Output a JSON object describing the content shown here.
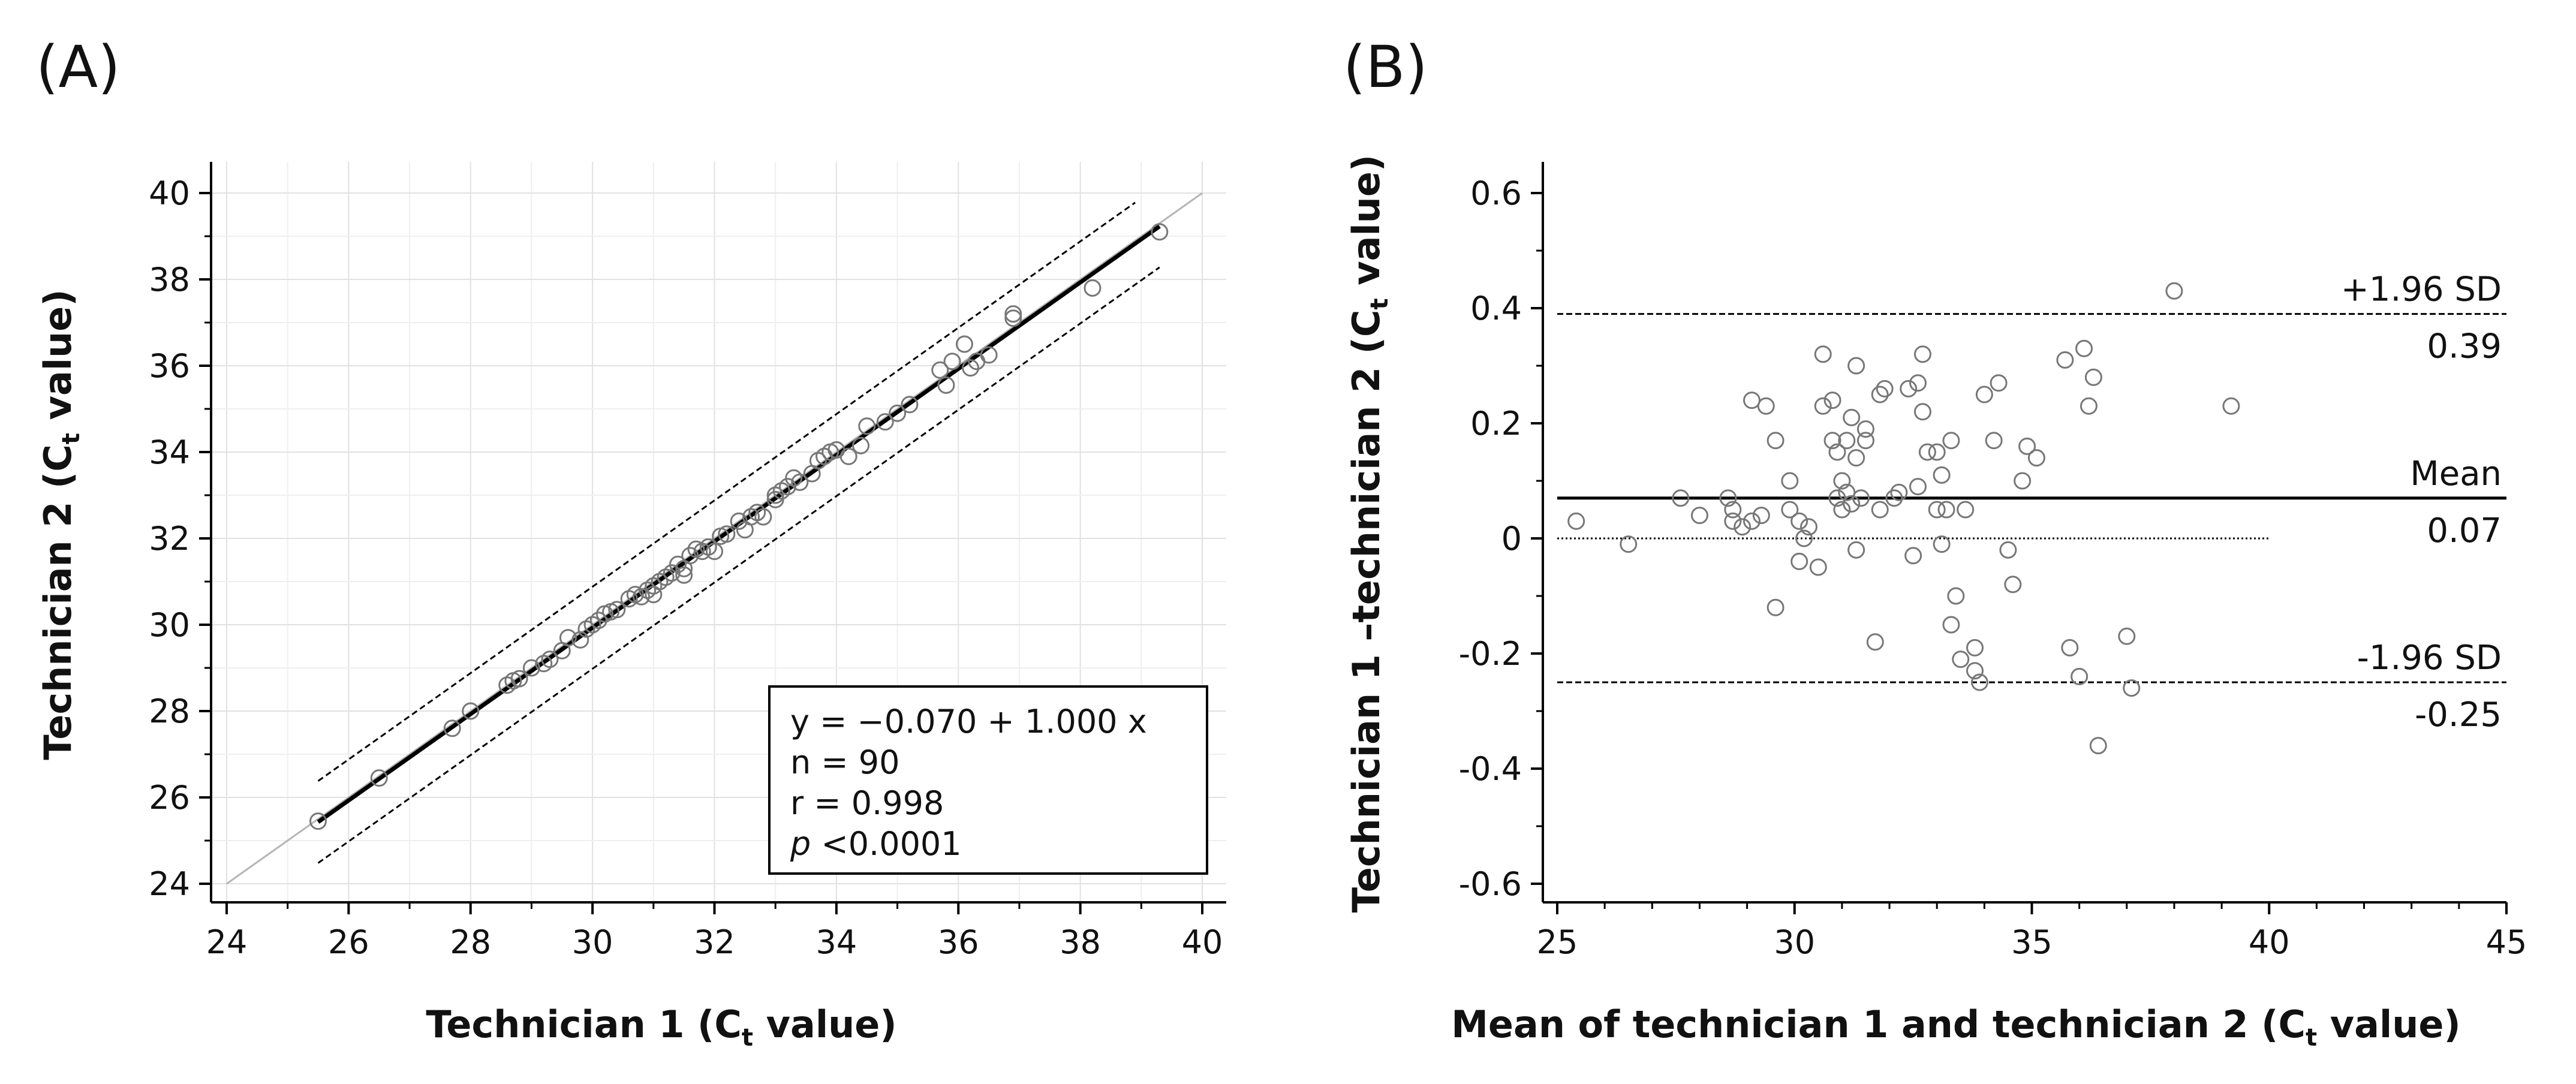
{
  "chart_data": [
    {
      "type": "scatter",
      "panel_label": "(A)",
      "xlabel": "Technician 1 (",
      "xlabel_sym": "C",
      "xlabel_sub": "t",
      "xlabel_end": " value)",
      "ylabel": "Technician 2 (",
      "ylabel_sym": "C",
      "ylabel_sub": "t",
      "ylabel_end": " value)",
      "xlim": [
        24,
        40
      ],
      "ylim": [
        24,
        40
      ],
      "xticks": [
        "24",
        "26",
        "28",
        "30",
        "32",
        "34",
        "36",
        "38",
        "40"
      ],
      "yticks": [
        "24",
        "26",
        "28",
        "30",
        "32",
        "34",
        "36",
        "38",
        "40"
      ],
      "grid": true,
      "regression_line": {
        "intercept": -0.07,
        "slope": 1.0,
        "x_range": [
          25.5,
          39.3
        ]
      },
      "prediction_band_offset": 0.95,
      "identity_line": true,
      "legend_box": {
        "equation": "y = −0.070 + 1.000 x",
        "n": "n = 90",
        "r": "r = 0.998",
        "p_italic": "p",
        "p_rest": " <0.0001"
      },
      "points": [
        [
          25.5,
          25.45
        ],
        [
          26.5,
          26.45
        ],
        [
          27.7,
          27.6
        ],
        [
          28.0,
          28.0
        ],
        [
          28.6,
          28.6
        ],
        [
          28.7,
          28.7
        ],
        [
          28.8,
          28.75
        ],
        [
          29.0,
          29.0
        ],
        [
          29.2,
          29.1
        ],
        [
          29.3,
          29.2
        ],
        [
          29.5,
          29.4
        ],
        [
          29.6,
          29.7
        ],
        [
          29.8,
          29.65
        ],
        [
          29.9,
          29.9
        ],
        [
          30.0,
          30.0
        ],
        [
          30.1,
          30.1
        ],
        [
          30.2,
          30.25
        ],
        [
          30.3,
          30.3
        ],
        [
          30.4,
          30.35
        ],
        [
          30.6,
          30.6
        ],
        [
          30.7,
          30.7
        ],
        [
          30.8,
          30.65
        ],
        [
          30.9,
          30.8
        ],
        [
          31.0,
          30.9
        ],
        [
          31.0,
          30.7
        ],
        [
          31.1,
          31.0
        ],
        [
          31.2,
          31.1
        ],
        [
          31.3,
          31.2
        ],
        [
          31.4,
          31.4
        ],
        [
          31.5,
          31.3
        ],
        [
          31.5,
          31.15
        ],
        [
          31.6,
          31.6
        ],
        [
          31.7,
          31.75
        ],
        [
          31.8,
          31.7
        ],
        [
          31.9,
          31.8
        ],
        [
          32.0,
          31.7
        ],
        [
          32.1,
          32.05
        ],
        [
          32.2,
          32.1
        ],
        [
          32.4,
          32.4
        ],
        [
          32.5,
          32.2
        ],
        [
          32.6,
          32.5
        ],
        [
          32.7,
          32.6
        ],
        [
          32.8,
          32.5
        ],
        [
          33.0,
          32.9
        ],
        [
          33.0,
          33.0
        ],
        [
          33.1,
          33.1
        ],
        [
          33.2,
          33.2
        ],
        [
          33.3,
          33.4
        ],
        [
          33.4,
          33.3
        ],
        [
          33.6,
          33.5
        ],
        [
          33.7,
          33.8
        ],
        [
          33.8,
          33.9
        ],
        [
          33.9,
          34.0
        ],
        [
          34.0,
          34.05
        ],
        [
          34.2,
          33.9
        ],
        [
          34.4,
          34.15
        ],
        [
          34.5,
          34.6
        ],
        [
          34.8,
          34.7
        ],
        [
          35.0,
          34.9
        ],
        [
          35.2,
          35.1
        ],
        [
          35.7,
          35.9
        ],
        [
          35.8,
          35.55
        ],
        [
          35.9,
          36.1
        ],
        [
          36.1,
          36.5
        ],
        [
          36.2,
          35.95
        ],
        [
          36.3,
          36.1
        ],
        [
          36.5,
          36.25
        ],
        [
          36.9,
          37.1
        ],
        [
          36.9,
          37.2
        ],
        [
          38.2,
          37.8
        ],
        [
          39.3,
          39.1
        ]
      ]
    },
    {
      "type": "scatter",
      "panel_label": "(B)",
      "xlabel": "Mean of technician 1 and technician 2 (",
      "xlabel_sym": "C",
      "xlabel_sub": "t",
      "xlabel_end": " value)",
      "ylabel": "Technician 1 –technician 2 (",
      "ylabel_sym": "C",
      "ylabel_sub": "t",
      "ylabel_end": " value)",
      "xlim": [
        25,
        45
      ],
      "ylim": [
        -0.6,
        0.6
      ],
      "xticks": [
        "25",
        "30",
        "35",
        "40",
        "45"
      ],
      "yticks": [
        "-0.6",
        "-0.4",
        "-0.2",
        "0",
        "0.2",
        "0.4",
        "0.6"
      ],
      "grid": false,
      "reference_lines": [
        {
          "name": "+1.96 SD",
          "label": "+1.96 SD",
          "value_label": "0.39",
          "value": 0.39,
          "style": "dashed"
        },
        {
          "name": "Mean",
          "label": "Mean",
          "value_label": "0.07",
          "value": 0.07,
          "style": "solid"
        },
        {
          "name": "-1.96 SD",
          "label": "-1.96 SD",
          "value_label": "-0.25",
          "value": -0.25,
          "style": "dashed"
        }
      ],
      "zero_line": {
        "value": 0,
        "x_range": [
          25,
          40
        ],
        "style": "dotted"
      },
      "points": [
        [
          25.4,
          0.03
        ],
        [
          26.5,
          -0.01
        ],
        [
          27.6,
          0.07
        ],
        [
          28.0,
          0.04
        ],
        [
          28.6,
          0.07
        ],
        [
          28.7,
          0.05
        ],
        [
          28.7,
          0.03
        ],
        [
          28.9,
          0.02
        ],
        [
          29.1,
          0.24
        ],
        [
          29.1,
          0.03
        ],
        [
          29.4,
          0.23
        ],
        [
          29.3,
          0.04
        ],
        [
          29.6,
          0.17
        ],
        [
          29.6,
          -0.12
        ],
        [
          29.9,
          0.1
        ],
        [
          29.9,
          0.05
        ],
        [
          30.1,
          0.03
        ],
        [
          30.1,
          -0.04
        ],
        [
          30.2,
          0.0
        ],
        [
          30.3,
          0.02
        ],
        [
          30.5,
          -0.05
        ],
        [
          30.6,
          0.32
        ],
        [
          30.6,
          0.23
        ],
        [
          30.8,
          0.24
        ],
        [
          30.8,
          0.17
        ],
        [
          30.9,
          0.15
        ],
        [
          30.9,
          0.07
        ],
        [
          31.0,
          0.05
        ],
        [
          31.0,
          0.1
        ],
        [
          31.1,
          0.17
        ],
        [
          31.1,
          0.08
        ],
        [
          31.2,
          0.06
        ],
        [
          31.2,
          0.21
        ],
        [
          31.3,
          0.3
        ],
        [
          31.3,
          0.14
        ],
        [
          31.3,
          -0.02
        ],
        [
          31.4,
          0.07
        ],
        [
          31.5,
          0.19
        ],
        [
          31.5,
          0.17
        ],
        [
          31.7,
          -0.18
        ],
        [
          31.8,
          0.05
        ],
        [
          31.8,
          0.25
        ],
        [
          31.9,
          0.26
        ],
        [
          32.1,
          0.07
        ],
        [
          32.2,
          0.08
        ],
        [
          32.4,
          0.26
        ],
        [
          32.5,
          -0.03
        ],
        [
          32.6,
          0.09
        ],
        [
          32.6,
          0.27
        ],
        [
          32.7,
          0.32
        ],
        [
          32.7,
          0.22
        ],
        [
          32.8,
          0.15
        ],
        [
          33.0,
          0.15
        ],
        [
          33.0,
          0.05
        ],
        [
          33.1,
          -0.01
        ],
        [
          33.1,
          0.11
        ],
        [
          33.2,
          0.05
        ],
        [
          33.3,
          0.17
        ],
        [
          33.3,
          -0.15
        ],
        [
          33.4,
          -0.1
        ],
        [
          33.5,
          -0.21
        ],
        [
          33.6,
          0.05
        ],
        [
          33.8,
          -0.19
        ],
        [
          33.8,
          -0.23
        ],
        [
          33.9,
          -0.25
        ],
        [
          34.0,
          0.25
        ],
        [
          34.2,
          0.17
        ],
        [
          34.3,
          0.27
        ],
        [
          34.5,
          -0.02
        ],
        [
          34.6,
          -0.08
        ],
        [
          34.8,
          0.1
        ],
        [
          34.9,
          0.16
        ],
        [
          35.1,
          0.14
        ],
        [
          35.7,
          0.31
        ],
        [
          35.8,
          -0.19
        ],
        [
          36.0,
          -0.24
        ],
        [
          36.1,
          0.33
        ],
        [
          36.2,
          0.23
        ],
        [
          36.3,
          0.28
        ],
        [
          36.4,
          -0.36
        ],
        [
          37.0,
          -0.17
        ],
        [
          37.1,
          -0.26
        ],
        [
          38.0,
          0.43
        ],
        [
          39.2,
          0.23
        ]
      ]
    }
  ]
}
